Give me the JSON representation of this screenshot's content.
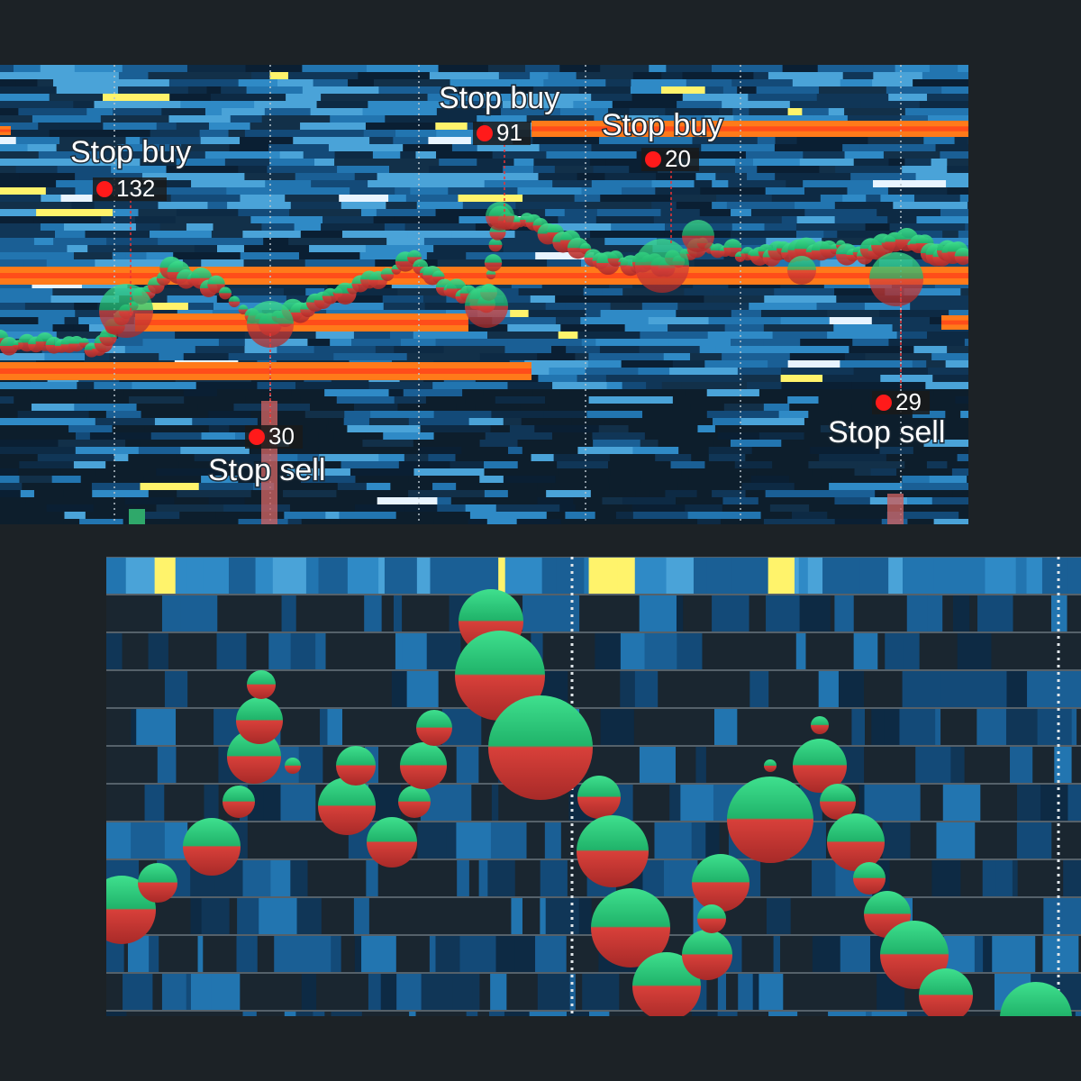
{
  "annotations": [
    {
      "label": "Stop buy",
      "count": 132
    },
    {
      "label": "Stop buy",
      "count": 91
    },
    {
      "label": "Stop buy",
      "count": 20
    },
    {
      "label": "Stop sell",
      "count": 30
    },
    {
      "label": "Stop sell",
      "count": 29
    }
  ]
}
